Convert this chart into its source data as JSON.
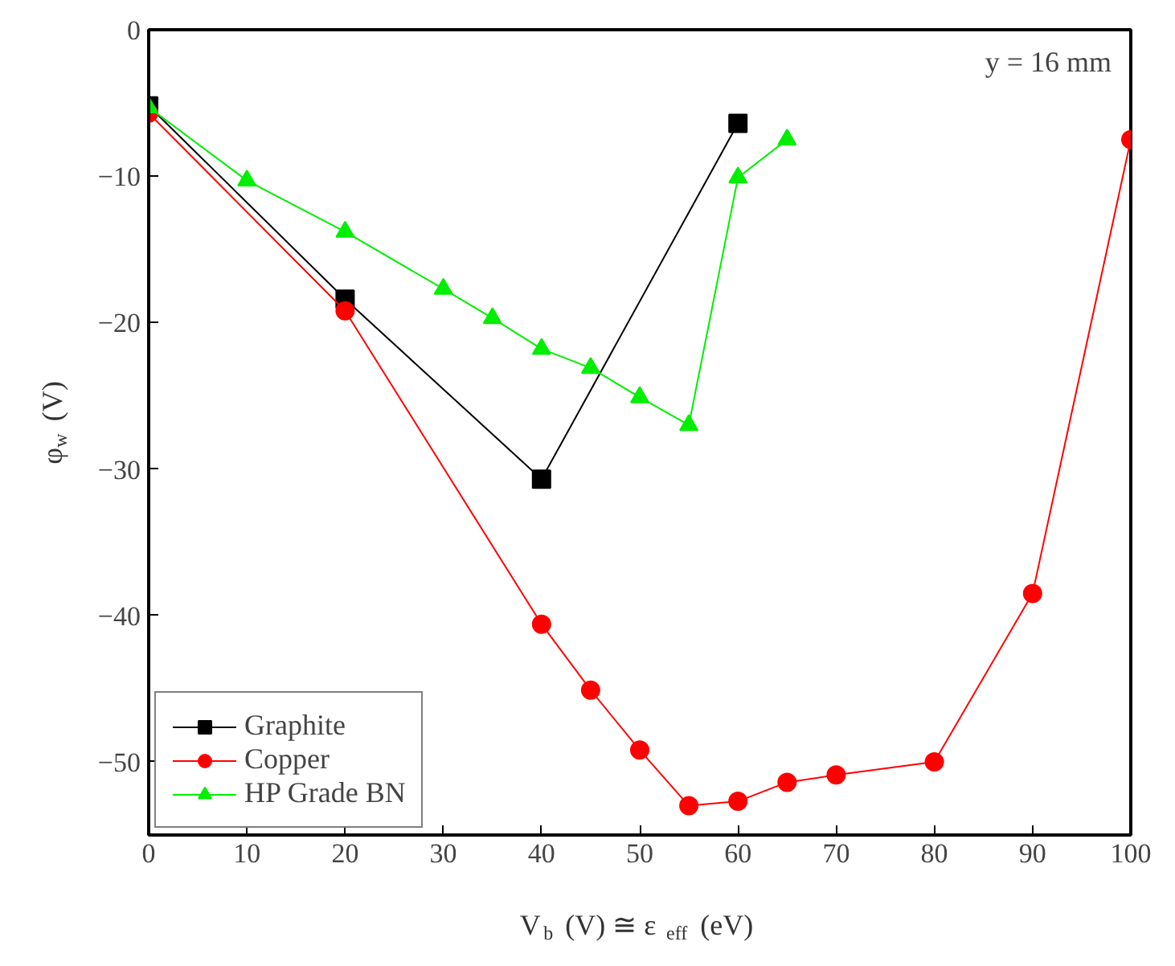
{
  "chart_data": {
    "type": "line",
    "xlabel": "V$_{b}$ (V) ≅ ε$_{eff}$ (eV)",
    "ylabel": "φ$_{w}$ (V)",
    "annotations": [
      "y = 16 mm"
    ],
    "xlim": [
      0,
      100
    ],
    "ylim": [
      -55,
      0
    ],
    "xticks": [
      0,
      10,
      20,
      30,
      40,
      50,
      60,
      70,
      80,
      90,
      100
    ],
    "yticks": [
      -50,
      -40,
      -30,
      -20,
      -10,
      0
    ],
    "grid": false,
    "legend": "bottom left",
    "series": [
      {
        "name": "Graphite",
        "color": "#000000",
        "marker": "square",
        "x": [
          0,
          20,
          40,
          60
        ],
        "values": [
          -5.2,
          -18.4,
          -30.7,
          -6.4
        ]
      },
      {
        "name": "Copper",
        "color": "#ff0000",
        "marker": "circle",
        "x": [
          0,
          20,
          40,
          45,
          50,
          55,
          60,
          65,
          70,
          80,
          90,
          100
        ],
        "values": [
          -5.7,
          -19.2,
          -40.6,
          -45.1,
          -49.2,
          -53,
          -52.7,
          -51.4,
          -50.9,
          -50,
          -38.5,
          -7.5
        ]
      },
      {
        "name": "HP Grade BN",
        "color": "#00ee00",
        "marker": "triangle",
        "x": [
          0,
          10,
          20,
          30,
          35,
          40,
          45,
          50,
          55,
          60,
          65
        ],
        "values": [
          -5.3,
          -10.3,
          -13.8,
          -17.7,
          -19.7,
          -21.8,
          -23.1,
          -25.1,
          -27,
          -10.1,
          -7.5
        ]
      }
    ]
  }
}
